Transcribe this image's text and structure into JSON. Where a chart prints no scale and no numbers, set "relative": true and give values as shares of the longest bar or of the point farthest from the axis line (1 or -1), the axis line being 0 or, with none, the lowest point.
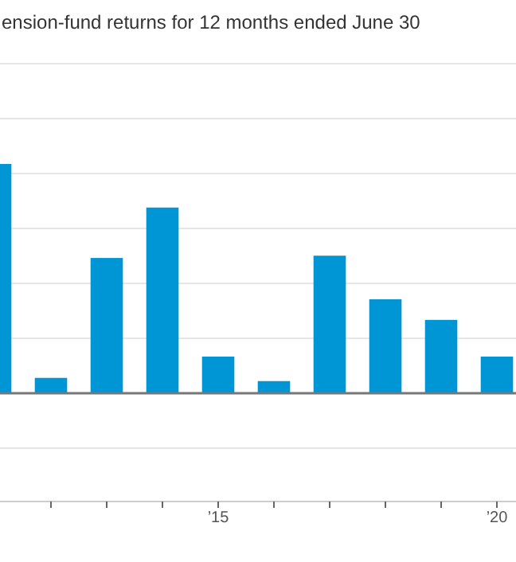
{
  "chart_data": {
    "type": "bar",
    "title": "ension-fund returns for 12 months ended June 30",
    "categories": [
      null,
      null,
      null,
      null,
      "’15",
      null,
      null,
      null,
      null,
      "’20"
    ],
    "values": [
      1,
      0.067,
      0.59,
      0.81,
      0.16,
      0.053,
      0.6,
      0.41,
      0.32,
      0.16
    ],
    "color": "#0096d6",
    "relative": true,
    "grid": "y"
  }
}
